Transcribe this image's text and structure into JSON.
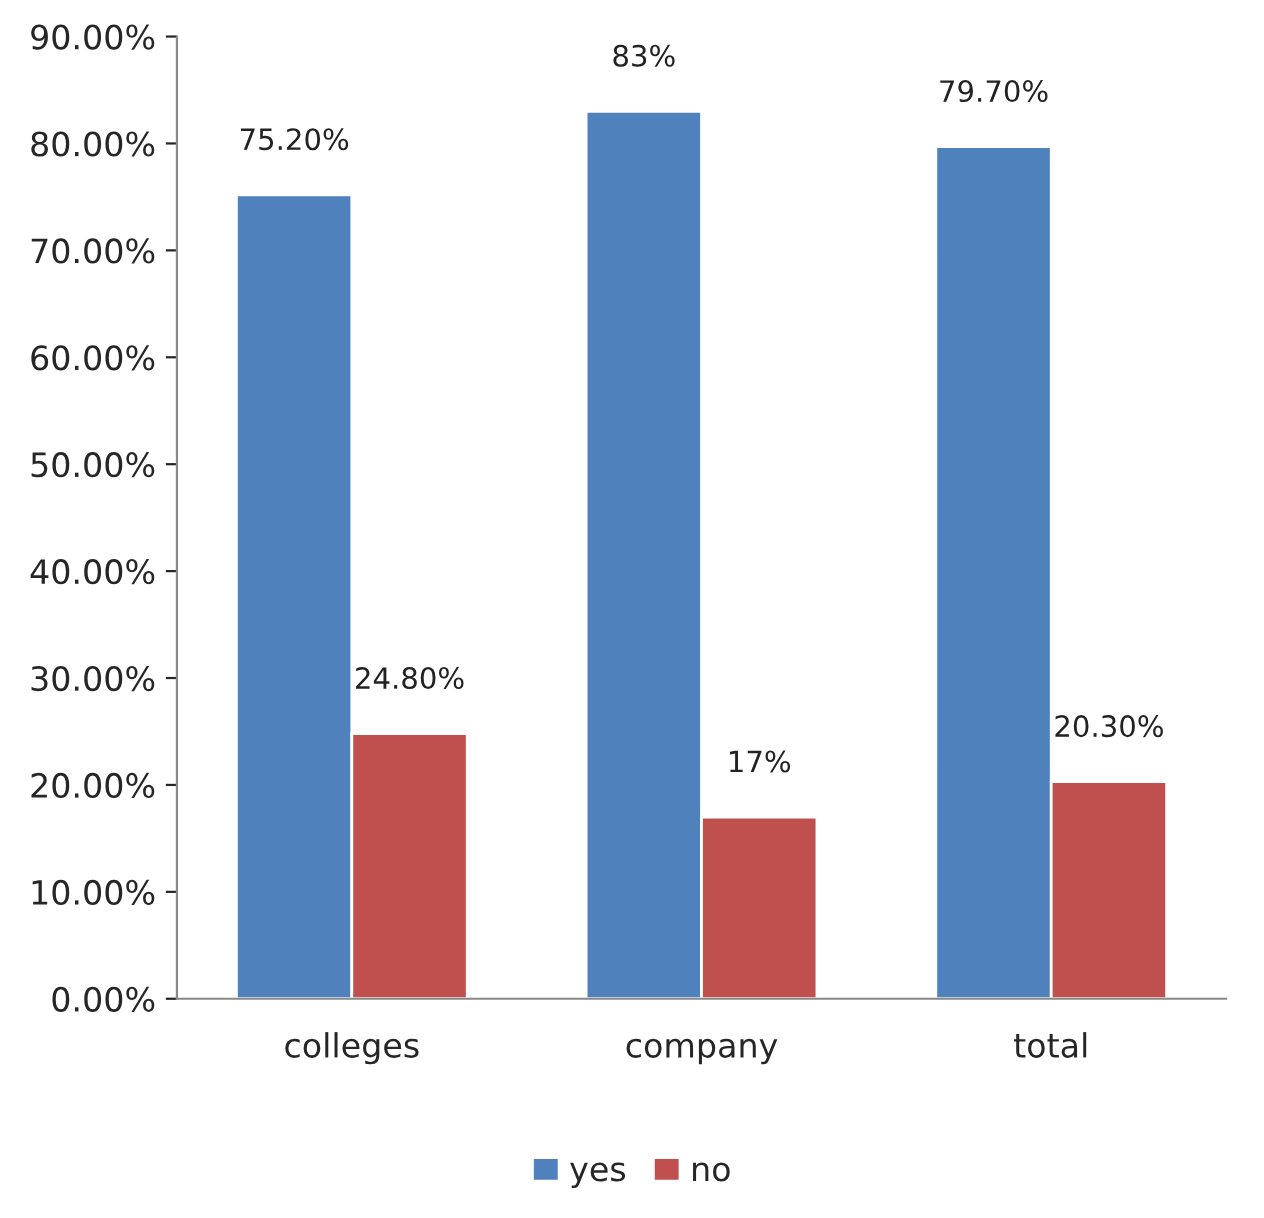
{
  "chart_data": {
    "type": "bar",
    "categories": [
      "colleges",
      "company",
      "total"
    ],
    "series": [
      {
        "name": "yes",
        "color": "#4f81bd",
        "values": [
          75.2,
          83,
          79.7
        ],
        "value_labels": [
          "75.20%",
          "83%",
          "79.70%"
        ]
      },
      {
        "name": "no",
        "color": "#c0504d",
        "values": [
          24.8,
          17,
          20.3
        ],
        "value_labels": [
          "24.80%",
          "17%",
          "20.30%"
        ]
      }
    ],
    "ylim": [
      0,
      90
    ],
    "yticks": [
      {
        "value": 0,
        "label": "0.00%"
      },
      {
        "value": 10,
        "label": "10.00%"
      },
      {
        "value": 20,
        "label": "20.00%"
      },
      {
        "value": 30,
        "label": "30.00%"
      },
      {
        "value": 40,
        "label": "40.00%"
      },
      {
        "value": 50,
        "label": "50.00%"
      },
      {
        "value": 60,
        "label": "60.00%"
      },
      {
        "value": 70,
        "label": "70.00%"
      },
      {
        "value": 80,
        "label": "80.00%"
      },
      {
        "value": 90,
        "label": "90.00%"
      }
    ],
    "grid": false,
    "legend": "bottom"
  }
}
